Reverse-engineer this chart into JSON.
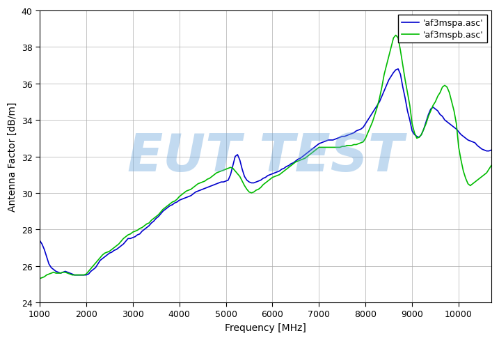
{
  "xlabel": "Frequency [MHz]",
  "ylabel": "Antenna Factor [dB/m]",
  "xlim": [
    1000,
    10700
  ],
  "ylim": [
    24,
    40
  ],
  "xticks": [
    1000,
    2000,
    3000,
    4000,
    5000,
    6000,
    7000,
    8000,
    9000,
    10000
  ],
  "yticks": [
    24,
    26,
    28,
    30,
    32,
    34,
    36,
    38,
    40
  ],
  "legend_labels": [
    "'af3mspa.asc'",
    "'af3mspb.asc'"
  ],
  "line_color_a": "#0000cc",
  "line_color_b": "#00bb00",
  "watermark_text": "EUT TEST",
  "watermark_color": "#6fa8dc",
  "watermark_alpha": 0.42,
  "freq_a": [
    1000,
    1050,
    1100,
    1150,
    1200,
    1250,
    1300,
    1350,
    1400,
    1450,
    1500,
    1550,
    1600,
    1650,
    1700,
    1750,
    1800,
    1850,
    1900,
    1950,
    2000,
    2050,
    2100,
    2150,
    2200,
    2250,
    2300,
    2350,
    2400,
    2450,
    2500,
    2550,
    2600,
    2650,
    2700,
    2750,
    2800,
    2850,
    2900,
    2950,
    3000,
    3050,
    3100,
    3150,
    3200,
    3250,
    3300,
    3350,
    3400,
    3450,
    3500,
    3550,
    3600,
    3650,
    3700,
    3750,
    3800,
    3850,
    3900,
    3950,
    4000,
    4050,
    4100,
    4150,
    4200,
    4250,
    4300,
    4350,
    4400,
    4450,
    4500,
    4550,
    4600,
    4650,
    4700,
    4750,
    4800,
    4850,
    4900,
    4950,
    5000,
    5050,
    5100,
    5150,
    5200,
    5250,
    5300,
    5350,
    5400,
    5450,
    5500,
    5550,
    5600,
    5650,
    5700,
    5750,
    5800,
    5850,
    5900,
    5950,
    6000,
    6050,
    6100,
    6150,
    6200,
    6250,
    6300,
    6350,
    6400,
    6450,
    6500,
    6550,
    6600,
    6650,
    6700,
    6750,
    6800,
    6850,
    6900,
    6950,
    7000,
    7050,
    7100,
    7150,
    7200,
    7250,
    7300,
    7350,
    7400,
    7450,
    7500,
    7550,
    7600,
    7650,
    7700,
    7750,
    7800,
    7850,
    7900,
    7950,
    8000,
    8050,
    8100,
    8150,
    8200,
    8250,
    8300,
    8350,
    8400,
    8450,
    8500,
    8550,
    8600,
    8650,
    8700,
    8750,
    8800,
    8850,
    8900,
    8950,
    9000,
    9050,
    9100,
    9150,
    9200,
    9250,
    9300,
    9350,
    9400,
    9450,
    9500,
    9550,
    9600,
    9650,
    9700,
    9750,
    9800,
    9850,
    9900,
    9950,
    10000,
    10050,
    10100,
    10150,
    10200,
    10250,
    10300,
    10350,
    10400,
    10450,
    10500,
    10550,
    10600,
    10650,
    10700
  ],
  "af_a": [
    27.4,
    27.2,
    26.9,
    26.5,
    26.1,
    25.9,
    25.8,
    25.7,
    25.65,
    25.6,
    25.65,
    25.7,
    25.65,
    25.6,
    25.55,
    25.5,
    25.5,
    25.5,
    25.5,
    25.5,
    25.5,
    25.55,
    25.7,
    25.8,
    25.9,
    26.1,
    26.3,
    26.4,
    26.5,
    26.6,
    26.7,
    26.75,
    26.85,
    26.9,
    27.0,
    27.1,
    27.2,
    27.35,
    27.5,
    27.5,
    27.55,
    27.6,
    27.7,
    27.75,
    27.9,
    28.0,
    28.1,
    28.2,
    28.35,
    28.45,
    28.6,
    28.7,
    28.85,
    29.0,
    29.1,
    29.2,
    29.3,
    29.35,
    29.45,
    29.5,
    29.6,
    29.65,
    29.7,
    29.75,
    29.8,
    29.85,
    29.95,
    30.05,
    30.1,
    30.15,
    30.2,
    30.25,
    30.3,
    30.35,
    30.4,
    30.45,
    30.5,
    30.55,
    30.6,
    30.6,
    30.65,
    30.7,
    31.0,
    31.5,
    32.0,
    32.1,
    31.8,
    31.3,
    30.9,
    30.7,
    30.6,
    30.55,
    30.55,
    30.6,
    30.65,
    30.7,
    30.8,
    30.85,
    30.95,
    31.0,
    31.05,
    31.1,
    31.15,
    31.2,
    31.3,
    31.35,
    31.45,
    31.5,
    31.6,
    31.65,
    31.75,
    31.85,
    31.9,
    32.0,
    32.1,
    32.2,
    32.3,
    32.4,
    32.5,
    32.6,
    32.7,
    32.75,
    32.8,
    32.85,
    32.9,
    32.9,
    32.9,
    32.95,
    33.0,
    33.05,
    33.1,
    33.1,
    33.15,
    33.2,
    33.25,
    33.3,
    33.4,
    33.45,
    33.5,
    33.6,
    33.8,
    34.0,
    34.2,
    34.4,
    34.6,
    34.8,
    35.0,
    35.3,
    35.6,
    35.9,
    36.2,
    36.4,
    36.6,
    36.75,
    36.8,
    36.5,
    35.8,
    35.2,
    34.5,
    34.0,
    33.4,
    33.2,
    33.1,
    33.05,
    33.2,
    33.5,
    33.9,
    34.3,
    34.6,
    34.7,
    34.6,
    34.5,
    34.3,
    34.2,
    34.0,
    33.9,
    33.8,
    33.7,
    33.6,
    33.5,
    33.35,
    33.2,
    33.1,
    33.0,
    32.9,
    32.85,
    32.8,
    32.75,
    32.6,
    32.5,
    32.4,
    32.35,
    32.3,
    32.3,
    32.35
  ],
  "freq_b": [
    1000,
    1050,
    1100,
    1150,
    1200,
    1250,
    1300,
    1350,
    1400,
    1450,
    1500,
    1550,
    1600,
    1650,
    1700,
    1750,
    1800,
    1850,
    1900,
    1950,
    2000,
    2050,
    2100,
    2150,
    2200,
    2250,
    2300,
    2350,
    2400,
    2450,
    2500,
    2550,
    2600,
    2650,
    2700,
    2750,
    2800,
    2850,
    2900,
    2950,
    3000,
    3050,
    3100,
    3150,
    3200,
    3250,
    3300,
    3350,
    3400,
    3450,
    3500,
    3550,
    3600,
    3650,
    3700,
    3750,
    3800,
    3850,
    3900,
    3950,
    4000,
    4050,
    4100,
    4150,
    4200,
    4250,
    4300,
    4350,
    4400,
    4450,
    4500,
    4550,
    4600,
    4650,
    4700,
    4750,
    4800,
    4850,
    4900,
    4950,
    5000,
    5050,
    5100,
    5150,
    5200,
    5250,
    5300,
    5350,
    5400,
    5450,
    5500,
    5550,
    5600,
    5650,
    5700,
    5750,
    5800,
    5850,
    5900,
    5950,
    6000,
    6050,
    6100,
    6150,
    6200,
    6250,
    6300,
    6350,
    6400,
    6450,
    6500,
    6550,
    6600,
    6650,
    6700,
    6750,
    6800,
    6850,
    6900,
    6950,
    7000,
    7050,
    7100,
    7150,
    7200,
    7250,
    7300,
    7350,
    7400,
    7450,
    7500,
    7550,
    7600,
    7650,
    7700,
    7750,
    7800,
    7850,
    7900,
    7950,
    8000,
    8050,
    8100,
    8150,
    8200,
    8250,
    8300,
    8350,
    8400,
    8450,
    8500,
    8550,
    8600,
    8650,
    8700,
    8750,
    8800,
    8850,
    8900,
    8950,
    9000,
    9050,
    9100,
    9150,
    9200,
    9250,
    9300,
    9350,
    9400,
    9450,
    9500,
    9550,
    9600,
    9650,
    9700,
    9750,
    9800,
    9850,
    9900,
    9950,
    10000,
    10050,
    10100,
    10150,
    10200,
    10250,
    10300,
    10350,
    10400,
    10450,
    10500,
    10550,
    10600,
    10650,
    10700
  ],
  "af_b": [
    25.3,
    25.35,
    25.4,
    25.5,
    25.55,
    25.6,
    25.65,
    25.6,
    25.6,
    25.6,
    25.65,
    25.65,
    25.6,
    25.55,
    25.5,
    25.5,
    25.5,
    25.5,
    25.5,
    25.5,
    25.55,
    25.7,
    25.85,
    26.0,
    26.15,
    26.3,
    26.45,
    26.6,
    26.7,
    26.75,
    26.8,
    26.9,
    27.0,
    27.1,
    27.2,
    27.35,
    27.5,
    27.6,
    27.7,
    27.75,
    27.85,
    27.9,
    27.95,
    28.05,
    28.1,
    28.2,
    28.3,
    28.35,
    28.5,
    28.6,
    28.7,
    28.8,
    28.95,
    29.1,
    29.2,
    29.3,
    29.4,
    29.5,
    29.55,
    29.65,
    29.8,
    29.9,
    30.0,
    30.1,
    30.15,
    30.2,
    30.3,
    30.4,
    30.5,
    30.55,
    30.6,
    30.65,
    30.75,
    30.8,
    30.9,
    31.0,
    31.1,
    31.15,
    31.2,
    31.25,
    31.3,
    31.35,
    31.4,
    31.35,
    31.2,
    31.05,
    30.9,
    30.65,
    30.4,
    30.2,
    30.05,
    30.0,
    30.05,
    30.15,
    30.2,
    30.3,
    30.45,
    30.55,
    30.65,
    30.75,
    30.85,
    30.9,
    30.95,
    31.0,
    31.1,
    31.2,
    31.3,
    31.4,
    31.5,
    31.6,
    31.7,
    31.75,
    31.8,
    31.85,
    31.9,
    32.0,
    32.1,
    32.2,
    32.3,
    32.4,
    32.5,
    32.5,
    32.5,
    32.5,
    32.5,
    32.5,
    32.5,
    32.5,
    32.5,
    32.5,
    32.55,
    32.55,
    32.6,
    32.6,
    32.6,
    32.65,
    32.65,
    32.7,
    32.75,
    32.8,
    33.0,
    33.3,
    33.6,
    33.9,
    34.3,
    34.7,
    35.2,
    35.8,
    36.5,
    37.0,
    37.5,
    38.0,
    38.5,
    38.65,
    38.5,
    37.8,
    37.0,
    36.2,
    35.5,
    34.8,
    33.8,
    33.3,
    33.0,
    33.05,
    33.2,
    33.5,
    33.8,
    34.2,
    34.5,
    34.8,
    35.0,
    35.3,
    35.5,
    35.8,
    35.9,
    35.8,
    35.5,
    35.0,
    34.5,
    33.8,
    32.5,
    31.8,
    31.2,
    30.8,
    30.5,
    30.4,
    30.5,
    30.6,
    30.7,
    30.8,
    30.9,
    31.0,
    31.1,
    31.3,
    31.5
  ]
}
